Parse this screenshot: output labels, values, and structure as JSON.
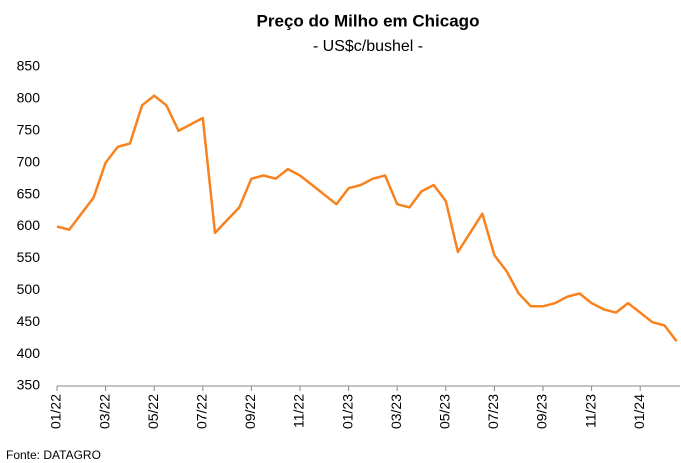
{
  "chart_data": {
    "type": "line",
    "title": "Preço do Milho em Chicago",
    "subtitle": "- US$c/bushel -",
    "source": "Fonte: DATAGRO",
    "categories": [
      "01/22",
      null,
      null,
      null,
      "03/22",
      null,
      null,
      null,
      "05/22",
      null,
      null,
      null,
      "07/22",
      null,
      null,
      null,
      "09/22",
      null,
      null,
      null,
      "11/22",
      null,
      null,
      null,
      "01/23",
      null,
      null,
      null,
      "03/23",
      null,
      null,
      null,
      "05/23",
      null,
      null,
      null,
      "07/23",
      null,
      null,
      null,
      "09/23",
      null,
      null,
      null,
      "11/23",
      null,
      null,
      null,
      "01/24",
      null,
      null,
      null
    ],
    "values": [
      600,
      595,
      620,
      645,
      700,
      725,
      730,
      790,
      805,
      790,
      750,
      760,
      770,
      590,
      610,
      630,
      675,
      680,
      675,
      690,
      680,
      665,
      650,
      635,
      660,
      665,
      675,
      680,
      635,
      630,
      655,
      665,
      640,
      560,
      590,
      620,
      555,
      530,
      495,
      475,
      475,
      480,
      490,
      495,
      480,
      470,
      465,
      480,
      465,
      450,
      445,
      420
    ],
    "color": "#f7821e",
    "ylim": [
      350,
      850
    ],
    "yticks": [
      350,
      400,
      450,
      500,
      550,
      600,
      650,
      700,
      750,
      800,
      850
    ],
    "grid": false
  }
}
